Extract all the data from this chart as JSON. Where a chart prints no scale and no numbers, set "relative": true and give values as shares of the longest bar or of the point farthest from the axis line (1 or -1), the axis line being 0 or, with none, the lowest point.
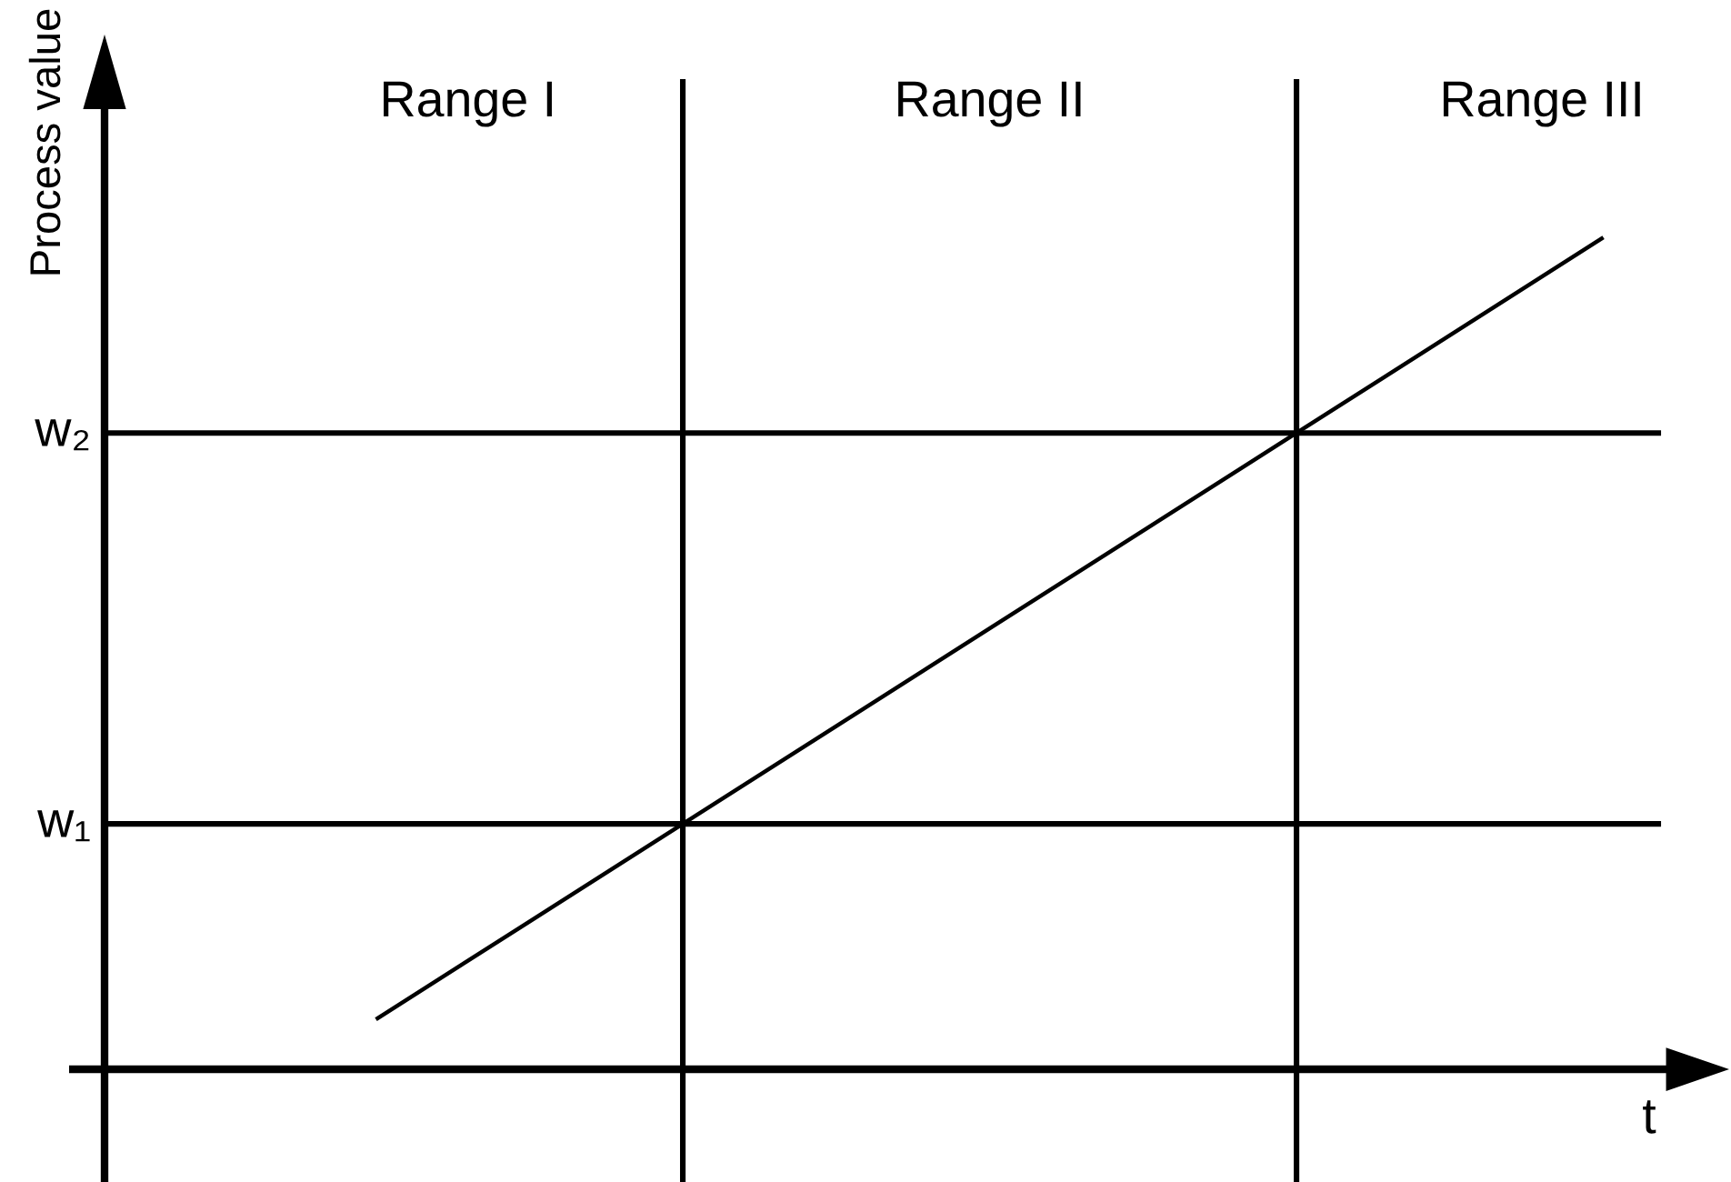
{
  "chart_data": {
    "type": "line",
    "xlabel": "t",
    "ylabel": "Process value",
    "relative": true,
    "categories": [
      null,
      null,
      null,
      null,
      null
    ],
    "series": [
      {
        "color": "#000000",
        "values": [
          0.06,
          0.295,
          0.53,
          0.765,
          1.0
        ]
      }
    ],
    "ref_lines": [
      {
        "axis": "y",
        "value": 0.295,
        "label": "w₁",
        "color": "#000000"
      },
      {
        "axis": "y",
        "value": 0.765,
        "label": "w₂",
        "color": "#000000"
      }
    ],
    "annotations": [
      "Range I",
      "Range II",
      "Range III"
    ]
  }
}
